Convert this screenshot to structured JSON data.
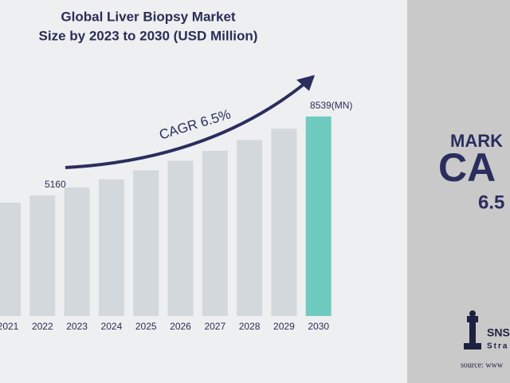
{
  "chart_data": {
    "type": "bar",
    "title": [
      "Global Liver Biopsy Market",
      "Size by 2023 to 2030 (USD Million)"
    ],
    "annotation": "CAGR 6.5%",
    "categories": [
      "2021",
      "2022",
      "2023",
      "2024",
      "2025",
      "2026",
      "2027",
      "2028",
      "2029",
      "2030"
    ],
    "values": [
      4845,
      5160,
      5495,
      5853,
      6233,
      6638,
      7070,
      7529,
      8019,
      8539
    ],
    "value_labels": [
      null,
      "5160",
      null,
      null,
      null,
      null,
      null,
      null,
      null,
      "8539(MN)"
    ],
    "colors": [
      "#d3d8dc",
      "#d3d8dc",
      "#d3d8dc",
      "#d3d8dc",
      "#d3d8dc",
      "#d3d8dc",
      "#d3d8dc",
      "#d3d8dc",
      "#d3d8dc",
      "#6fcbbf"
    ],
    "grid": false
  },
  "side_panel": {
    "line1": "MARK",
    "line2": "CA",
    "line3": "6.5",
    "brand": "SNS",
    "brand_sub": "Stra",
    "source": "source: www"
  }
}
